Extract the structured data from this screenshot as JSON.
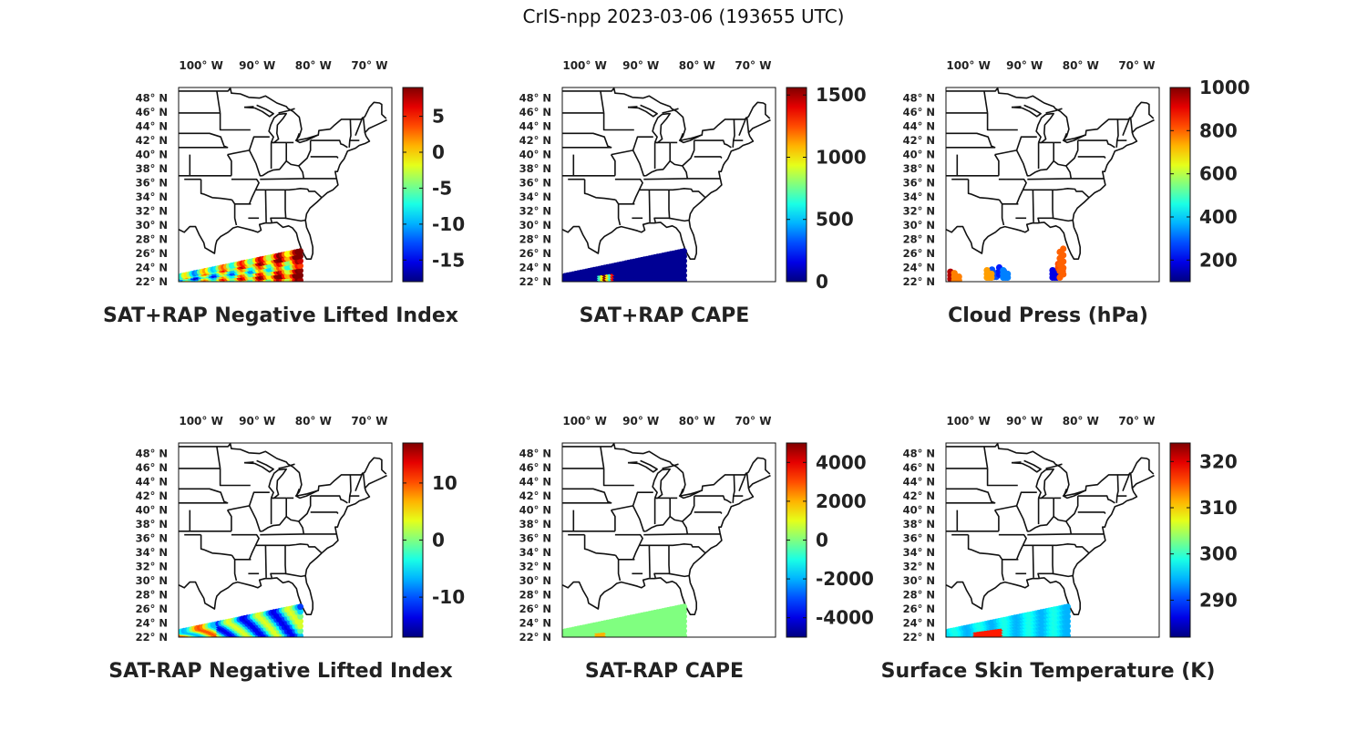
{
  "title": "CrIS-npp 2023-03-06 (193655 UTC)",
  "map": {
    "lon_ticks": [
      "100° W",
      "90° W",
      "80° W",
      "70° W"
    ],
    "lat_ticks": [
      "48° N",
      "46° N",
      "44° N",
      "42° N",
      "40° N",
      "38° N",
      "36° N",
      "34° N",
      "32° N",
      "30° N",
      "28° N",
      "26° N",
      "24° N",
      "22° N"
    ],
    "lon_values": [
      -100,
      -90,
      -80,
      -70
    ],
    "lat_values": [
      48,
      46,
      44,
      42,
      40,
      38,
      36,
      34,
      32,
      30,
      28,
      26,
      24,
      22
    ],
    "lon_range": [
      -104,
      -66
    ],
    "lat_range": [
      22,
      49.5
    ]
  },
  "colormap": "jet",
  "panels": [
    {
      "id": "sat-rap-neg-li",
      "title": "SAT+RAP Negative Lifted Index",
      "colorbar": {
        "min": -18,
        "max": 9,
        "ticks": [
          "5",
          "0",
          "-5",
          "-10",
          "-15"
        ],
        "tick_values": [
          5,
          0,
          -5,
          -10,
          -15
        ]
      },
      "swath_profile": "li_sum"
    },
    {
      "id": "sat-rap-cape",
      "title": "SAT+RAP CAPE",
      "colorbar": {
        "min": 0,
        "max": 1560,
        "ticks": [
          "1500",
          "1000",
          "500",
          "0"
        ],
        "tick_values": [
          1500,
          1000,
          500,
          0
        ]
      },
      "swath_profile": "cape_sum"
    },
    {
      "id": "cloud-press",
      "title": "Cloud Press (hPa)",
      "colorbar": {
        "min": 100,
        "max": 1000,
        "ticks": [
          "1000",
          "800",
          "600",
          "400",
          "200"
        ],
        "tick_values": [
          1000,
          800,
          600,
          400,
          200
        ]
      },
      "swath_profile": "cloud"
    },
    {
      "id": "sat-minus-rap-neg-li",
      "title": "SAT-RAP Negative Lifted Index",
      "colorbar": {
        "min": -17,
        "max": 17,
        "ticks": [
          "10",
          "0",
          "-10"
        ],
        "tick_values": [
          10,
          0,
          -10
        ]
      },
      "swath_profile": "li_diff"
    },
    {
      "id": "sat-minus-rap-cape",
      "title": "SAT-RAP CAPE",
      "colorbar": {
        "min": -5000,
        "max": 5000,
        "ticks": [
          "4000",
          "2000",
          "0",
          "-2000",
          "-4000"
        ],
        "tick_values": [
          4000,
          2000,
          0,
          -2000,
          -4000
        ]
      },
      "swath_profile": "cape_diff"
    },
    {
      "id": "skin-temp",
      "title": "Surface Skin Temperature (K)",
      "colorbar": {
        "min": 282,
        "max": 324,
        "ticks": [
          "320",
          "310",
          "300",
          "290"
        ],
        "tick_values": [
          320,
          310,
          300,
          290
        ]
      },
      "swath_profile": "tskin"
    }
  ]
}
